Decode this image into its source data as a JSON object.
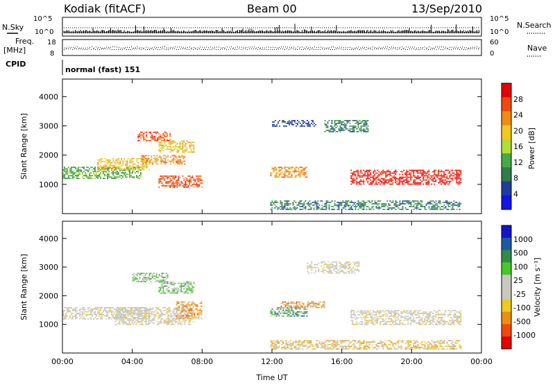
{
  "header": {
    "station": "Kodiak (fitACF)",
    "beam": "Beam 00",
    "date": "13/Sep/2010"
  },
  "top_panels": {
    "nsky_label": "N.Sky",
    "nsearch_label": "N.Search",
    "noise_ticks": [
      "10^5",
      "10^0"
    ],
    "freq_label_1": "Freq.",
    "freq_label_2": "[MHz]",
    "freq_ticks": [
      "18",
      "8"
    ],
    "nave_label": "Nave",
    "nave_ticks": [
      "60",
      "0"
    ],
    "cpid_label": "CPID",
    "cpid_value": "normal (fast) 151"
  },
  "colors": {
    "power_scale": [
      "#1414e6",
      "#1e3ca0",
      "#2e7d4a",
      "#46aa46",
      "#b4dc32",
      "#f0c81e",
      "#f08c14",
      "#f04a0a",
      "#e60000"
    ],
    "velocity_scale": [
      "#e60000",
      "#f04a0a",
      "#f08c14",
      "#f0c81e",
      "#c8c8be",
      "#c8c8be",
      "#46c828",
      "#2e8c46",
      "#1e5aa0",
      "#1414c8"
    ],
    "ground_scatter": "#b8b8b0"
  },
  "chart_data": [
    {
      "type": "heatmap",
      "title": "",
      "xlabel": "Time UT",
      "ylabel": "Slant Range [km]",
      "xlim": [
        "00:00",
        "24:00"
      ],
      "ylim": [
        0,
        4600
      ],
      "x_ticks": [
        "00:00",
        "04:00",
        "08:00",
        "12:00",
        "16:00",
        "20:00",
        "00:00"
      ],
      "y_ticks": [
        "1000",
        "2000",
        "3000",
        "4000"
      ],
      "colorbar_label": "Power [dB]",
      "colorbar_ticks": [
        "4",
        "8",
        "12",
        "16",
        "20",
        "24",
        "28"
      ],
      "regions": [
        {
          "t0": 0.0,
          "t1": 4.5,
          "r0": 1200,
          "r1": 1600,
          "level": 3
        },
        {
          "t0": 2.0,
          "t1": 5.0,
          "r0": 1500,
          "r1": 1900,
          "level": 5
        },
        {
          "t0": 4.3,
          "t1": 6.2,
          "r0": 2500,
          "r1": 2800,
          "level": 7
        },
        {
          "t0": 5.5,
          "t1": 7.5,
          "r0": 2100,
          "r1": 2500,
          "level": 5
        },
        {
          "t0": 4.5,
          "t1": 7.0,
          "r0": 1700,
          "r1": 2000,
          "level": 6
        },
        {
          "t0": 5.5,
          "t1": 8.0,
          "r0": 900,
          "r1": 1300,
          "level": 7
        },
        {
          "t0": 11.9,
          "t1": 14.0,
          "r0": 1250,
          "r1": 1600,
          "level": 6
        },
        {
          "t0": 16.5,
          "t1": 22.8,
          "r0": 1000,
          "r1": 1500,
          "level": 8
        },
        {
          "t0": 11.9,
          "t1": 22.8,
          "r0": 150,
          "r1": 450,
          "level": 2
        },
        {
          "t0": 15.0,
          "t1": 17.5,
          "r0": 2800,
          "r1": 3200,
          "level": 2
        },
        {
          "t0": 12.0,
          "t1": 14.5,
          "r0": 3000,
          "r1": 3200,
          "level": 1
        }
      ]
    },
    {
      "type": "heatmap",
      "title": "",
      "xlabel": "Time UT",
      "ylabel": "Slant Range [km]",
      "xlim": [
        "00:00",
        "24:00"
      ],
      "ylim": [
        0,
        4600
      ],
      "x_ticks": [
        "00:00",
        "04:00",
        "08:00",
        "12:00",
        "16:00",
        "20:00",
        "00:00"
      ],
      "y_ticks": [
        "1000",
        "2000",
        "3000",
        "4000"
      ],
      "colorbar_label": "Velocity [m s^-1]",
      "colorbar_ticks": [
        "1000",
        "500",
        "100",
        "25",
        "-25",
        "-100",
        "-500",
        "-1000"
      ],
      "regions": [
        {
          "t0": 0.0,
          "t1": 5.0,
          "r0": 1200,
          "r1": 1600,
          "level": 4
        },
        {
          "t0": 3.0,
          "t1": 7.5,
          "r0": 1000,
          "r1": 1600,
          "level": 4
        },
        {
          "t0": 4.0,
          "t1": 6.0,
          "r0": 2500,
          "r1": 2800,
          "level": 6
        },
        {
          "t0": 5.5,
          "t1": 7.5,
          "r0": 2100,
          "r1": 2500,
          "level": 6
        },
        {
          "t0": 6.5,
          "t1": 8.0,
          "r0": 1200,
          "r1": 1800,
          "level": 2
        },
        {
          "t0": 11.9,
          "t1": 14.0,
          "r0": 1300,
          "r1": 1600,
          "level": 7
        },
        {
          "t0": 12.5,
          "t1": 15.0,
          "r0": 1600,
          "r1": 1800,
          "level": 2
        },
        {
          "t0": 16.5,
          "t1": 22.8,
          "r0": 1000,
          "r1": 1500,
          "level": 4
        },
        {
          "t0": 11.9,
          "t1": 22.8,
          "r0": 150,
          "r1": 450,
          "level": 3
        },
        {
          "t0": 14.0,
          "t1": 17.0,
          "r0": 2800,
          "r1": 3200,
          "level": 4
        }
      ]
    }
  ]
}
